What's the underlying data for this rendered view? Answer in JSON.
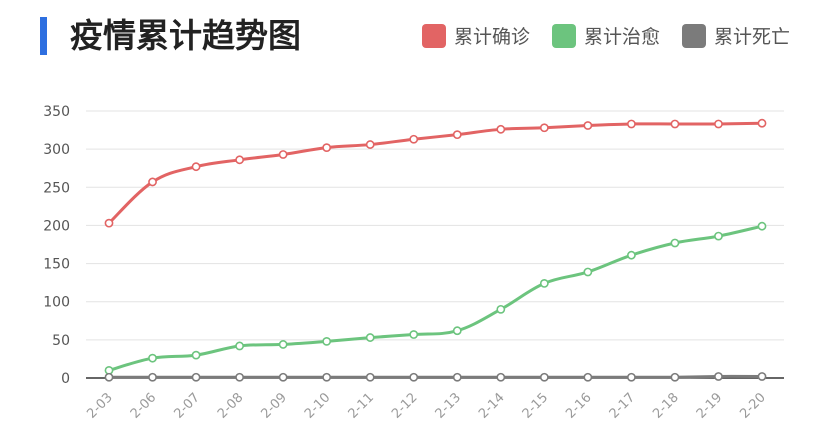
{
  "title": "疫情累计趋势图",
  "colors": {
    "accent_bar": "#2e6fe0",
    "confirmed": "#e26464",
    "cured": "#6cc47e",
    "dead": "#7b7b7b",
    "grid": "#e3e3e3",
    "axis": "#333333"
  },
  "legend": [
    {
      "label": "累计确诊",
      "color": "#e26464"
    },
    {
      "label": "累计治愈",
      "color": "#6cc47e"
    },
    {
      "label": "累计死亡",
      "color": "#7b7b7b"
    }
  ],
  "chart_data": {
    "type": "line",
    "categories": [
      "2-03",
      "2-06",
      "2-07",
      "2-08",
      "2-09",
      "2-10",
      "2-11",
      "2-12",
      "2-13",
      "2-14",
      "2-15",
      "2-16",
      "2-17",
      "2-18",
      "2-19",
      "2-20"
    ],
    "series": [
      {
        "name": "累计确诊",
        "color": "#e26464",
        "values": [
          203,
          257,
          277,
          286,
          293,
          302,
          306,
          313,
          319,
          326,
          328,
          331,
          333,
          333,
          333,
          334
        ]
      },
      {
        "name": "累计治愈",
        "color": "#6cc47e",
        "values": [
          10,
          26,
          30,
          42,
          44,
          48,
          53,
          57,
          62,
          90,
          124,
          139,
          161,
          177,
          186,
          199
        ]
      },
      {
        "name": "累计死亡",
        "color": "#7b7b7b",
        "values": [
          1,
          1,
          1,
          1,
          1,
          1,
          1,
          1,
          1,
          1,
          1,
          1,
          1,
          1,
          2,
          2
        ]
      }
    ],
    "yticks": [
      0,
      50,
      100,
      150,
      200,
      250,
      300,
      350
    ],
    "ylim": [
      0,
      350
    ],
    "grid": true,
    "legend_position": "top-right"
  }
}
